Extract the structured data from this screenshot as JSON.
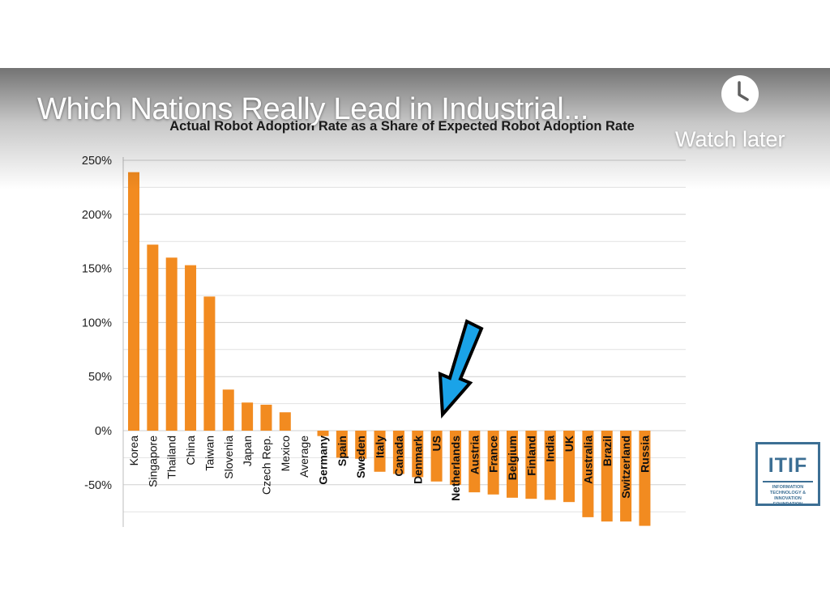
{
  "video": {
    "title": "Which Nations Really Lead in Industrial...",
    "watch_later_label": "Watch later",
    "watch_later_icon": "clock-icon"
  },
  "logo": {
    "name": "ITIF",
    "subtitle": "INFORMATION TECHNOLOGY & INNOVATION FOUNDATION",
    "color": "#3c6f94"
  },
  "annotation": {
    "icon": "arrow-down-left-icon",
    "color": "#1aa3e8",
    "points_to": "Netherlands"
  },
  "chart_data": {
    "type": "bar",
    "title": "Actual Robot Adoption Rate as a Share of Expected Robot Adoption Rate",
    "xlabel": "",
    "ylabel": "",
    "ylim": [
      -100,
      250
    ],
    "yticks": [
      -50,
      0,
      50,
      100,
      150,
      200,
      250
    ],
    "ytick_labels": [
      "-50%",
      "0%",
      "50%",
      "100%",
      "150%",
      "200%",
      "250%"
    ],
    "grid": true,
    "bar_color": "#f28b20",
    "categories": [
      "Korea",
      "Singapore",
      "Thailand",
      "China",
      "Taiwan",
      "Slovenia",
      "Japan",
      "Czech Rep.",
      "Mexico",
      "Average",
      "Germany",
      "Spain",
      "Sweden",
      "Italy",
      "Canada",
      "Denmark",
      "US",
      "Netherlands",
      "Austria",
      "France",
      "Belgium",
      "Finland",
      "India",
      "UK",
      "Australia",
      "Brazil",
      "Switzerland",
      "Russia"
    ],
    "values": [
      239,
      172,
      160,
      153,
      124,
      38,
      26,
      24,
      17,
      0,
      -5,
      -25,
      -26,
      -38,
      -40,
      -43,
      -47,
      -50,
      -57,
      -59,
      -62,
      -63,
      -64,
      -66,
      -80,
      -84,
      -84,
      -88
    ]
  }
}
